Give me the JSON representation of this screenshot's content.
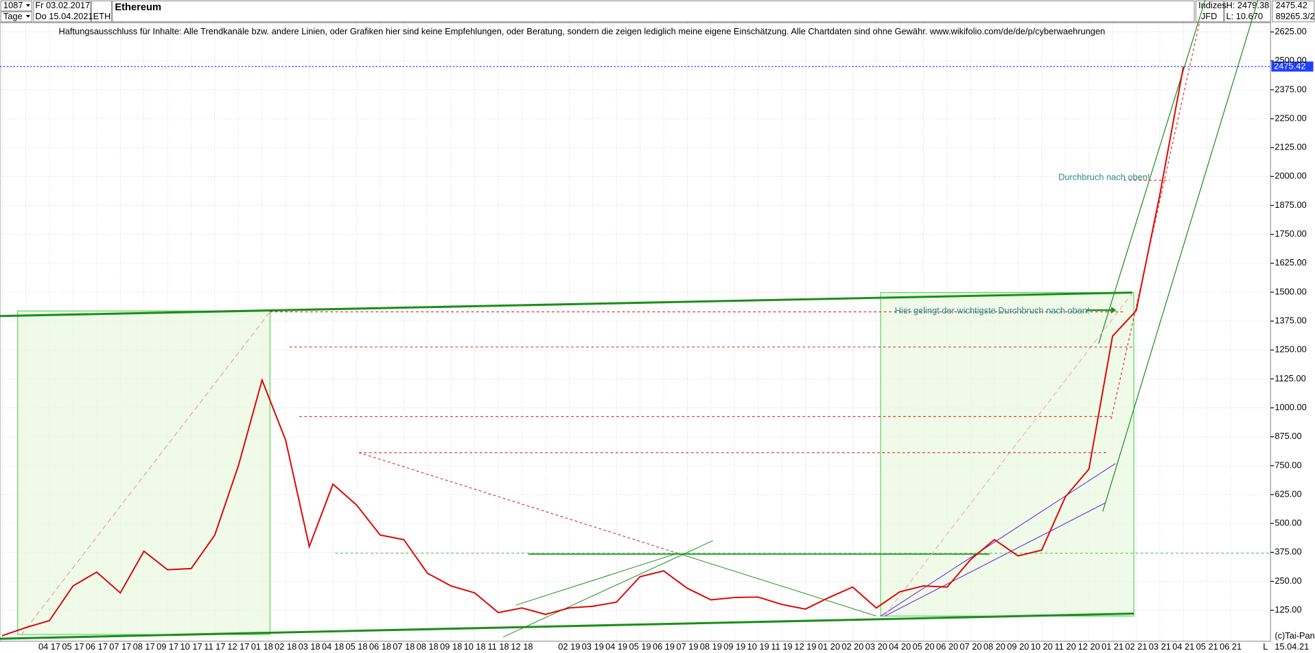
{
  "header": {
    "count": "1087",
    "start": "Fr 03.02.2017",
    "period": "Tage",
    "end": "Do 15.04.2021",
    "symbol": "ETH",
    "group": "Indizes",
    "source": "JFD",
    "high": "H: 2479.38",
    "low": "L: 10.670",
    "last": "2475.42",
    "volume": "89265.3/2",
    "disclaimer": "Haftungsausschluss für Inhalte: Alle Trendkanäle bzw. andere Linien, oder Grafiken hier sind keine Empfehlungen, oder Beratung, sondern die zeigen lediglich meine eigene Einschätzung. Alle Chartdaten sind ohne Gewähr.  www.wikifolio.com/de/de/p/cyberwaehrungen",
    "copyright": "(c)Tai-Pan",
    "date": "15.04.21",
    "mode": "L"
  },
  "chart_data": {
    "type": "line",
    "title": "Ethereum",
    "categories": [
      null,
      null,
      "04 17",
      "05 17",
      "06 17",
      "07 17",
      "08 17",
      "09 17",
      "10 17",
      "11 17",
      "12 17",
      "01 18",
      "02 18",
      "03 18",
      "04 18",
      "05 18",
      "06 18",
      "07 18",
      "08 18",
      "09 18",
      "10 18",
      "11 18",
      "12 18",
      null,
      "02 19",
      "03 19",
      "04 19",
      "05 19",
      "06 19",
      "07 19",
      "08 19",
      "09 19",
      "10 19",
      "11 19",
      "12 19",
      "01 20",
      "02 20",
      "03 20",
      "04 20",
      "05 20",
      "06 20",
      "07 20",
      "08 20",
      "09 20",
      "10 20",
      "11 20",
      "12 20",
      "01 21",
      "02 21",
      "03 21",
      "04 21",
      "05 21",
      "06 21"
    ],
    "series": [
      {
        "name": "ETH",
        "color": "#e00000",
        "values": [
          15,
          50,
          80,
          230,
          290,
          200,
          380,
          300,
          305,
          450,
          750,
          1120,
          860,
          400,
          670,
          580,
          450,
          430,
          285,
          230,
          200,
          115,
          135,
          107,
          135,
          142,
          160,
          270,
          295,
          220,
          170,
          180,
          182,
          150,
          130,
          180,
          225,
          135,
          205,
          230,
          225,
          345,
          430,
          360,
          385,
          615,
          735,
          1310,
          1420,
          1920,
          2475,
          null,
          null
        ]
      }
    ],
    "ylim": [
      -9,
      2763
    ],
    "yticks": [
      {
        "value": 125,
        "label": "125.00"
      },
      {
        "value": 250,
        "label": "250.00"
      },
      {
        "value": 375,
        "label": "375.00"
      },
      {
        "value": 500,
        "label": "500.00"
      },
      {
        "value": 625,
        "label": "625.00"
      },
      {
        "value": 750,
        "label": "750.00"
      },
      {
        "value": 875,
        "label": "875.00"
      },
      {
        "value": 1000,
        "label": "1000.00"
      },
      {
        "value": 1125,
        "label": "1125.00"
      },
      {
        "value": 1250,
        "label": "1250.00"
      },
      {
        "value": 1375,
        "label": "1375.00"
      },
      {
        "value": 1500,
        "label": "1500.00"
      },
      {
        "value": 1625,
        "label": "1625.00"
      },
      {
        "value": 1750,
        "label": "1750.00"
      },
      {
        "value": 1875,
        "label": "1875.00"
      },
      {
        "value": 2000,
        "label": "2000.00"
      },
      {
        "value": 2125,
        "label": "2125.00"
      },
      {
        "value": 2250,
        "label": "2250.00"
      },
      {
        "value": 2375,
        "label": "2375.00"
      },
      {
        "value": 2500,
        "label": "2500.00"
      },
      {
        "value": 2625,
        "label": "2625.00"
      }
    ],
    "grid": true,
    "last_price": 2475.42,
    "annotations": [
      "Durchbruch nach oben!",
      "Hier gelingt der wichtigste Durchbruch nach oben!"
    ]
  }
}
